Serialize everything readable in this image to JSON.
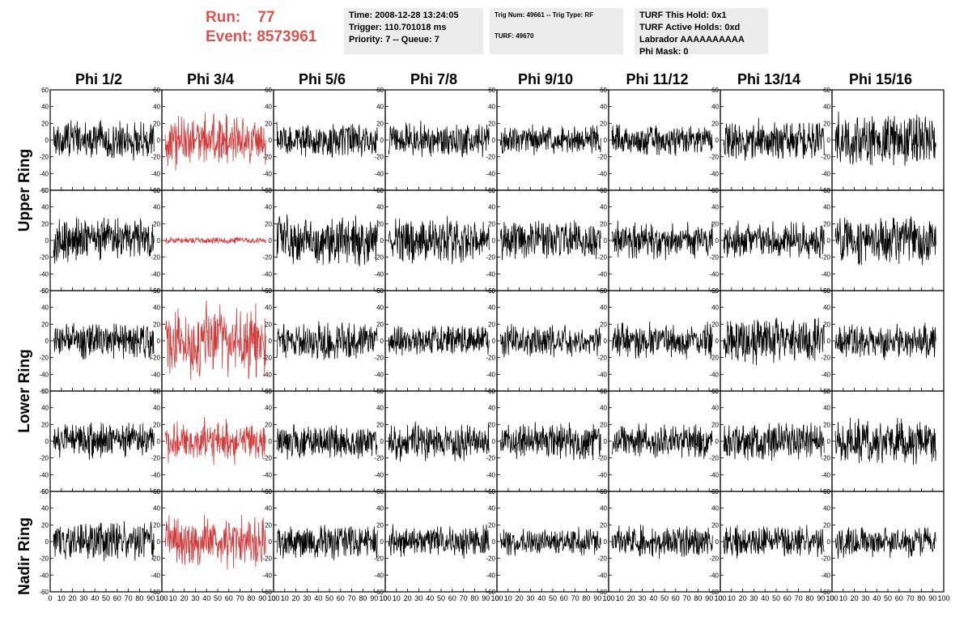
{
  "run_info": {
    "run_label": "Run:",
    "run_value": "77",
    "event_label": "Event:",
    "event_value": "8573961",
    "color": "#d9534f"
  },
  "info_box_1": {
    "time": "Time: 2008-12-28 13:24:05",
    "trigger": "Trigger: 110.701018 ms",
    "priority": "Priority: 7 -- Queue: 7"
  },
  "info_box_2": {
    "trig": "Trig Num: 49661 -- Trig Type: RF",
    "turf": "TURF: 49670"
  },
  "info_box_3": {
    "hold": "TURF This Hold: 0x1",
    "active": "TURF Active Holds: 0xd",
    "labrador": "Labrador AAAAAAAAAA",
    "phimask": "Phi Mask: 0"
  },
  "columns": [
    "Phi 1/2",
    "Phi 3/4",
    "Phi 5/6",
    "Phi 7/8",
    "Phi 9/10",
    "Phi 11/12",
    "Phi 13/14",
    "Phi 15/16"
  ],
  "rings": [
    "Upper Ring",
    "Lower Ring",
    "Nadir Ring"
  ],
  "chart_data": {
    "type": "line",
    "grid": false,
    "x_range": [
      0,
      100
    ],
    "y_range": [
      -60,
      60
    ],
    "x_ticks": [
      0,
      10,
      20,
      30,
      40,
      50,
      60,
      70,
      80,
      90,
      100
    ],
    "y_ticks": [
      -60,
      -40,
      -20,
      0,
      20,
      40,
      60
    ],
    "panel_rows": 5,
    "panel_cols": 8,
    "default_color": "#000000",
    "highlight_color": "#d23a3a",
    "highlighted_panels": [
      [
        0,
        1
      ],
      [
        1,
        1
      ],
      [
        2,
        1
      ],
      [
        3,
        1
      ],
      [
        4,
        1
      ]
    ],
    "amplitudes": [
      [
        18,
        22,
        16,
        16,
        13,
        14,
        18,
        24
      ],
      [
        20,
        3,
        22,
        20,
        17,
        16,
        16,
        22
      ],
      [
        17,
        30,
        16,
        14,
        14,
        16,
        20,
        16
      ],
      [
        16,
        18,
        15,
        17,
        16,
        15,
        17,
        20
      ],
      [
        17,
        22,
        16,
        14,
        12,
        14,
        14,
        14
      ]
    ]
  }
}
